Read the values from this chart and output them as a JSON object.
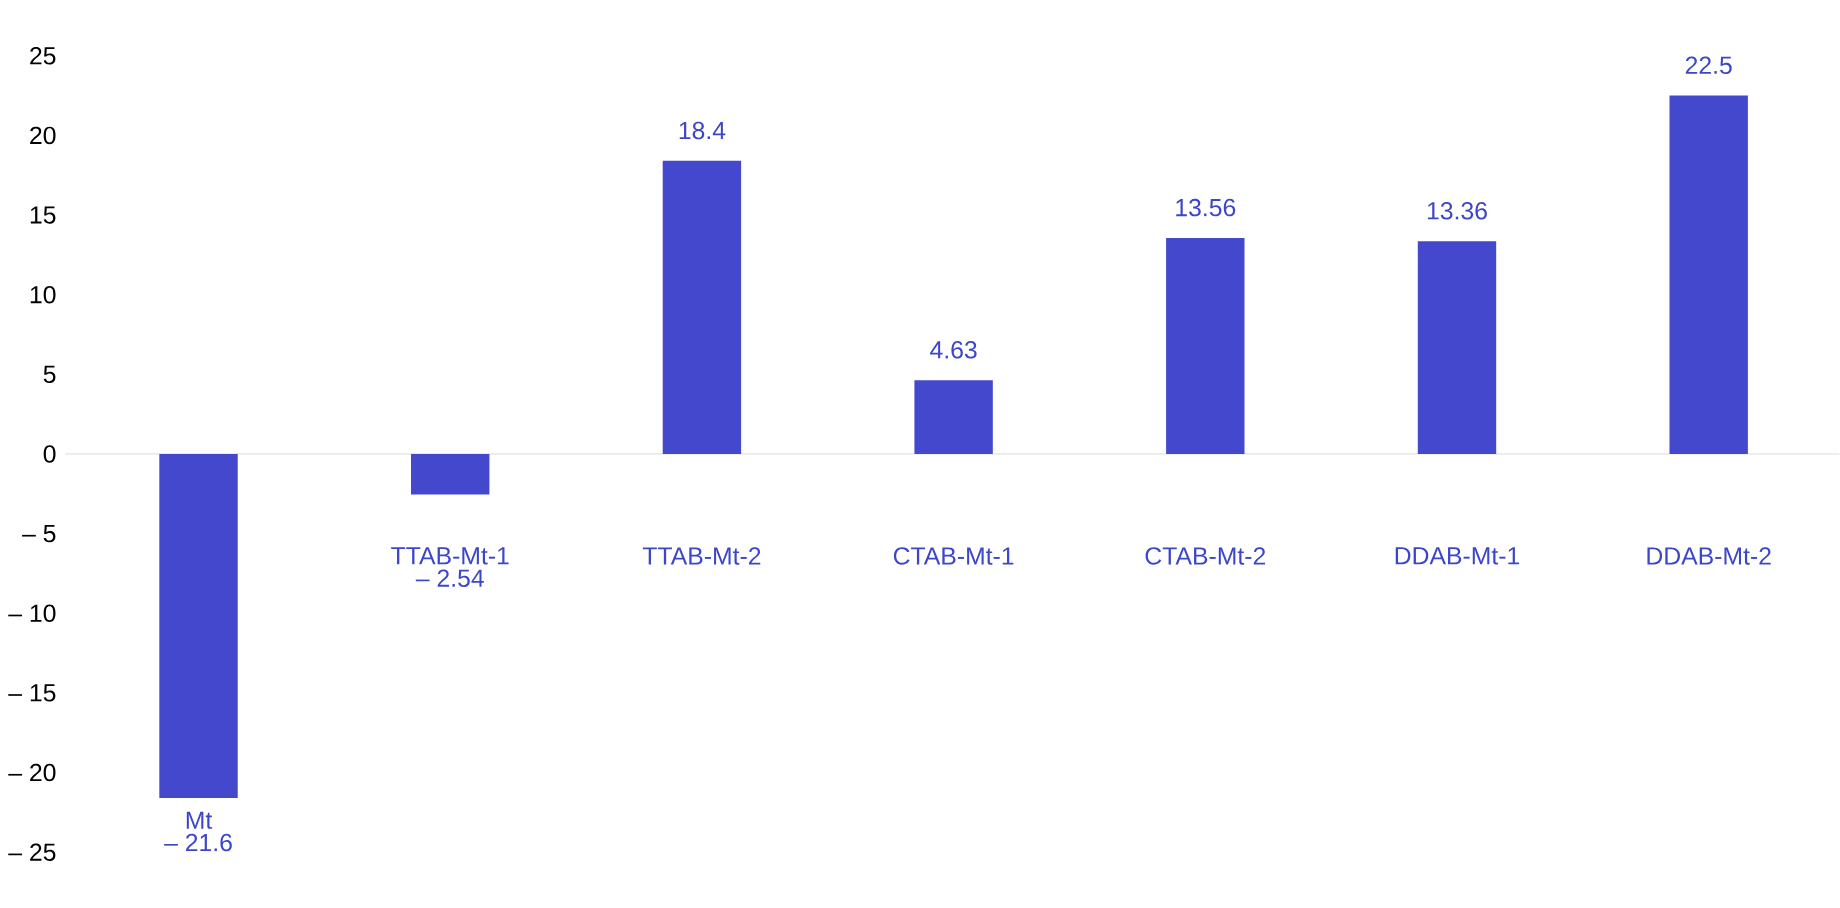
{
  "chart_data": {
    "type": "bar",
    "categories": [
      "Mt",
      "TTAB-Mt-1",
      "TTAB-Mt-2",
      "CTAB-Mt-1",
      "CTAB-Mt-2",
      "DDAB-Mt-1",
      "DDAB-Mt-2"
    ],
    "values": [
      -21.6,
      -2.54,
      18.4,
      4.63,
      13.56,
      13.36,
      22.5
    ],
    "ylim": [
      -25,
      25
    ],
    "yticks": [
      {
        "value": -25,
        "label": "– 25"
      },
      {
        "value": -20,
        "label": "– 20"
      },
      {
        "value": -15,
        "label": "– 15"
      },
      {
        "value": -10,
        "label": "– 10"
      },
      {
        "value": -5,
        "label": "– 5"
      },
      0,
      5,
      10,
      15,
      20,
      25
    ],
    "value_labels": [
      "– 21.6",
      "– 2.54",
      "18.4",
      "4.63",
      "13.56",
      "13.36",
      "22.5"
    ],
    "color": "#4348cc"
  }
}
